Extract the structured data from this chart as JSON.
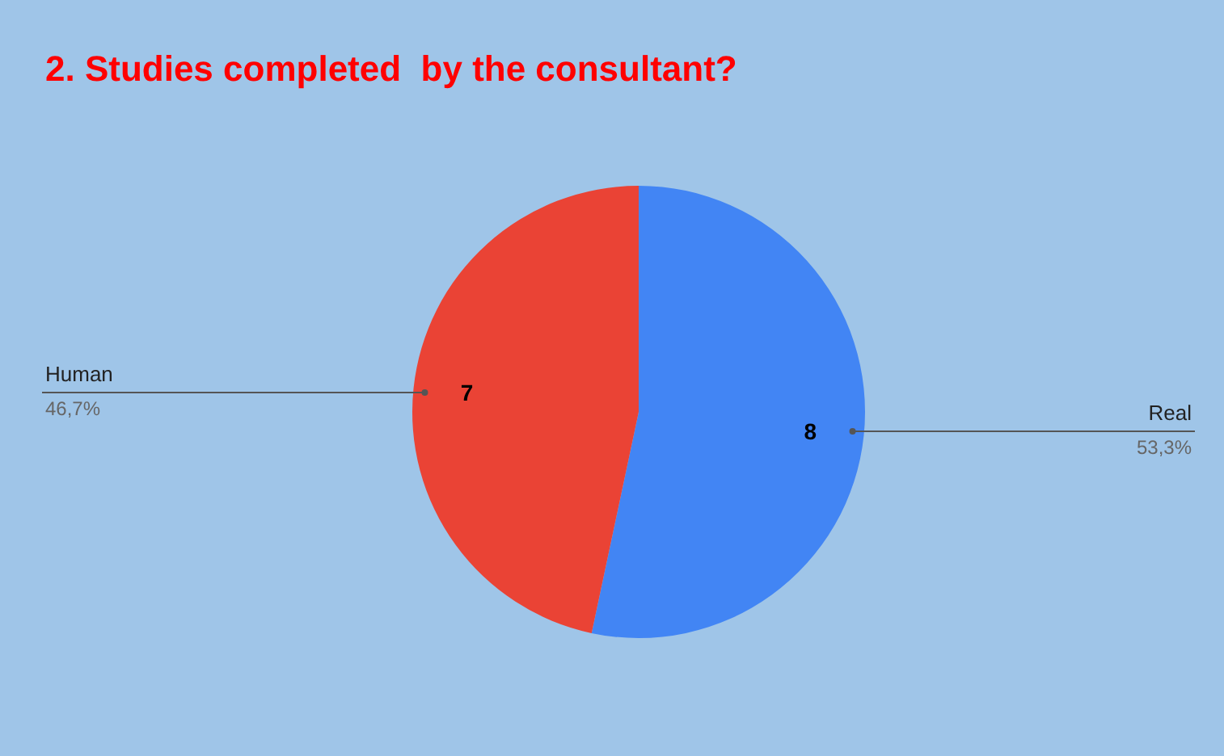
{
  "chart_data": {
    "type": "pie",
    "title": "2. Studies completed  by the consultant?",
    "categories": [
      "Real",
      "Human"
    ],
    "values": [
      8,
      7
    ],
    "colors": [
      "#4285f4",
      "#ea4335"
    ],
    "data_labels": true,
    "annotations": [
      "53,3%",
      "46,7%"
    ],
    "legend": false
  }
}
